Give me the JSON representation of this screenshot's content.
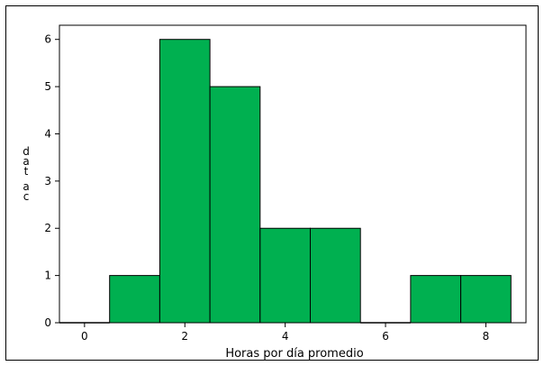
{
  "chart_data": {
    "type": "bar",
    "subtype": "histogram",
    "bin_width": 1,
    "bin_centers": [
      0,
      1,
      2,
      3,
      4,
      5,
      6,
      7,
      8
    ],
    "values": [
      0,
      1,
      6,
      5,
      2,
      2,
      0,
      1,
      1
    ],
    "xlabel": "Horas por día promedio",
    "ylabel": "dat ac",
    "x_ticks": [
      0,
      2,
      4,
      6,
      8
    ],
    "y_ticks": [
      0,
      1,
      2,
      3,
      4,
      5,
      6
    ],
    "xlim": [
      -0.5,
      8.8
    ],
    "ylim": [
      0,
      6.3
    ],
    "grid": false,
    "colors": {
      "bar_fill": "#00b050",
      "bar_stroke": "#000000"
    }
  }
}
